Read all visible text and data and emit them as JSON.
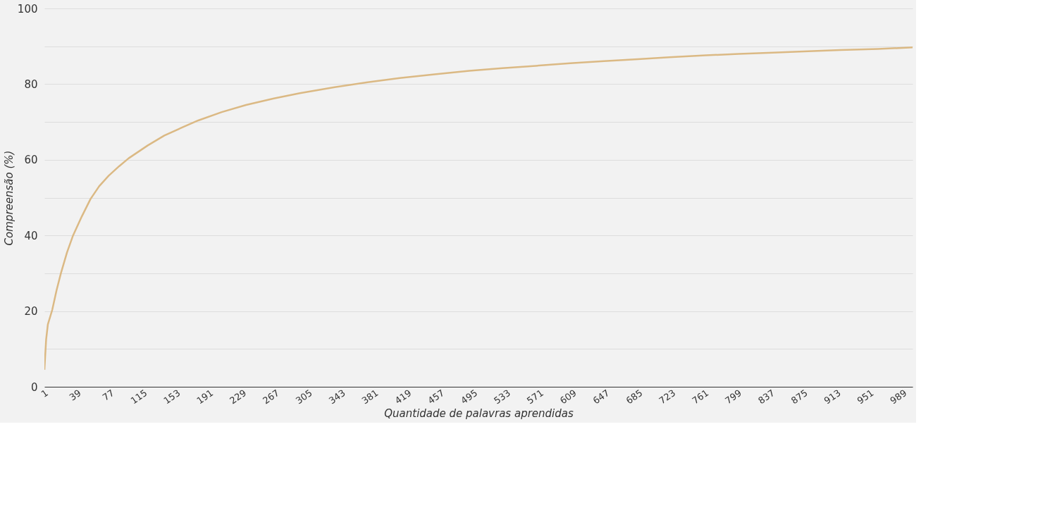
{
  "chart_data": {
    "type": "line",
    "xlabel": "Quantidade de palavras aprendidas",
    "ylabel": "Compreensão (%)",
    "x": [
      1,
      3,
      5,
      10,
      15,
      20,
      27,
      34,
      44,
      54,
      64,
      75,
      87,
      98,
      120,
      139,
      160,
      178,
      205,
      233,
      265,
      295,
      335,
      373,
      410,
      450,
      490,
      528,
      570,
      606,
      645,
      684,
      720,
      762,
      800,
      839,
      880,
      917,
      960,
      1000
    ],
    "series": [
      {
        "color": "#dbb984",
        "values": [
          4.5,
          12.5,
          16.5,
          20.3,
          25.5,
          30,
          35.5,
          40,
          45,
          49.6,
          53,
          55.8,
          58.3,
          60.4,
          63.8,
          66.4,
          68.6,
          70.4,
          72.6,
          74.5,
          76.2,
          77.6,
          79.2,
          80.5,
          81.6,
          82.6,
          83.5,
          84.2,
          84.9,
          85.5,
          86.1,
          86.6,
          87.1,
          87.6,
          88,
          88.3,
          88.7,
          89,
          89.3,
          89.7
        ]
      }
    ],
    "xlim": [
      1,
      1000
    ],
    "xticks": [
      1,
      39,
      77,
      115,
      153,
      191,
      229,
      267,
      305,
      343,
      381,
      419,
      457,
      495,
      533,
      571,
      609,
      647,
      685,
      723,
      761,
      799,
      837,
      875,
      913,
      951,
      989
    ],
    "ylim": [
      0,
      100
    ],
    "yticks": [
      0,
      {
        "value": 10,
        "label": null
      },
      20,
      {
        "value": 30,
        "label": null
      },
      40,
      {
        "value": 50,
        "label": null
      },
      60,
      {
        "value": 70,
        "label": null
      },
      80,
      {
        "value": 90,
        "label": null
      },
      100
    ],
    "grid": "y",
    "marker": "none",
    "line_style": "solid"
  }
}
